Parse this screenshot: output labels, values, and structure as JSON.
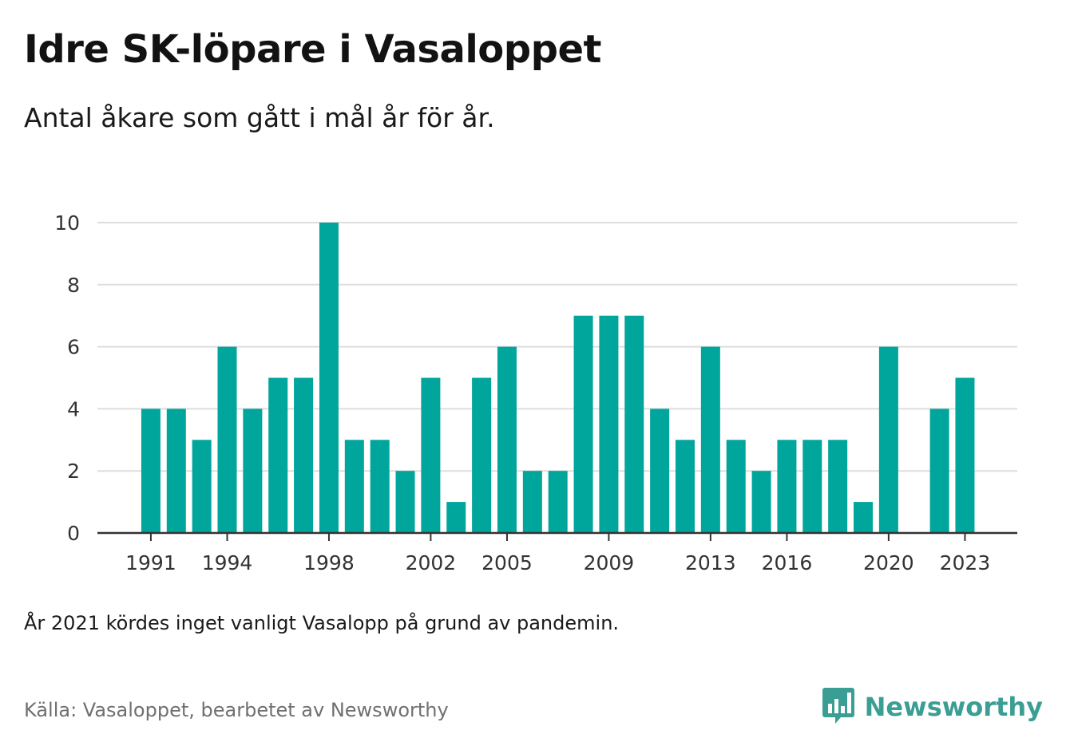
{
  "header": {
    "title": "Idre SK-löpare i Vasaloppet",
    "subtitle": "Antal åkare som gått i mål år för år."
  },
  "footer": {
    "note": "År 2021 kördes inget vanligt Vasalopp på grund av pandemin.",
    "source": "Källa: Vasaloppet, bearbetet av Newsworthy",
    "brand": "Newsworthy",
    "brand_icon": "bar-chart-speech-bubble-icon"
  },
  "colors": {
    "bar": "#00a59c",
    "grid": "#dddddd",
    "axis": "#333333",
    "brand": "#3a9e94"
  },
  "chart_data": {
    "type": "bar",
    "title": "Idre SK-löpare i Vasaloppet",
    "subtitle": "Antal åkare som gått i mål år för år.",
    "xlabel": "",
    "ylabel": "",
    "categories": [
      1991,
      1992,
      1993,
      1994,
      1995,
      1996,
      1997,
      1998,
      1999,
      2000,
      2001,
      2002,
      2003,
      2004,
      2005,
      2006,
      2007,
      2008,
      2009,
      2010,
      2011,
      2012,
      2013,
      2014,
      2015,
      2016,
      2017,
      2018,
      2019,
      2020,
      2021,
      2022,
      2023
    ],
    "values": [
      4,
      4,
      3,
      6,
      4,
      5,
      5,
      10,
      3,
      3,
      2,
      5,
      1,
      5,
      6,
      2,
      2,
      7,
      7,
      7,
      4,
      3,
      6,
      3,
      2,
      3,
      3,
      3,
      1,
      6,
      null,
      4,
      5
    ],
    "x_tick_labels": [
      "1991",
      "1994",
      "1998",
      "2002",
      "2005",
      "2009",
      "2013",
      "2016",
      "2020",
      "2023"
    ],
    "y_ticks": [
      0,
      2,
      4,
      6,
      8,
      10
    ],
    "ylim": [
      0,
      10
    ],
    "grid": true,
    "legend": "none"
  }
}
